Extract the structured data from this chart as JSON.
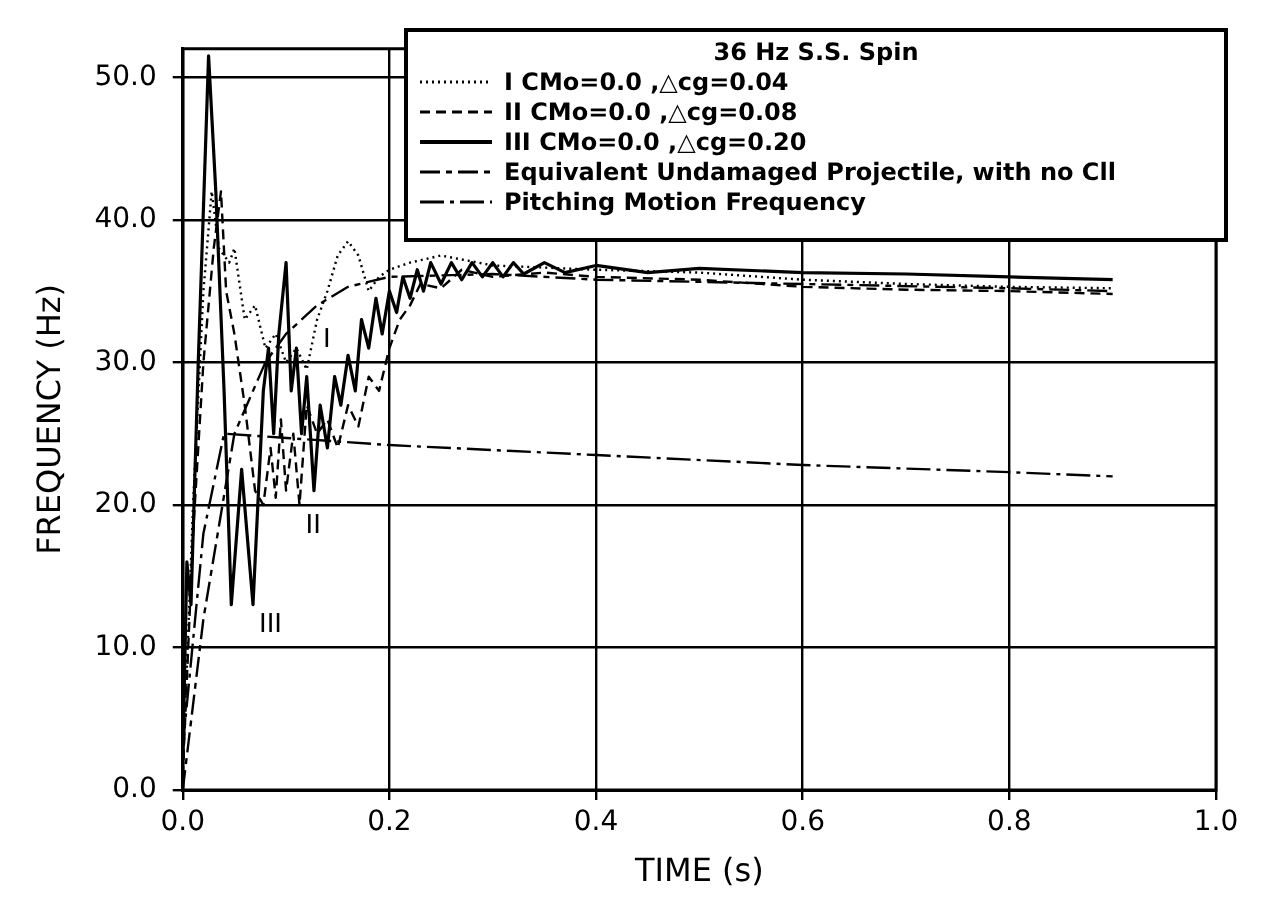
{
  "chart_data": {
    "type": "line",
    "xlabel": "TIME (s)",
    "ylabel": "FREQUENCY (Hz)",
    "legend_title": "36 Hz S.S. Spin",
    "xlim": [
      0,
      1
    ],
    "ylim": [
      0,
      52
    ],
    "xticks": [
      {
        "value": 0,
        "label": "0.0"
      },
      {
        "value": 0.2,
        "label": "0.2"
      },
      {
        "value": 0.4,
        "label": "0.4"
      },
      {
        "value": 0.6,
        "label": "0.6"
      },
      {
        "value": 0.8,
        "label": "0.8"
      },
      {
        "value": 1,
        "label": "1.0"
      }
    ],
    "yticks": [
      {
        "value": 0,
        "label": "0.0"
      },
      {
        "value": 10,
        "label": "10.0"
      },
      {
        "value": 20,
        "label": "20.0"
      },
      {
        "value": 30,
        "label": "30.0"
      },
      {
        "value": 40,
        "label": "40.0"
      },
      {
        "value": 50,
        "label": "50.0"
      }
    ],
    "grid": true,
    "legend": "top right",
    "marker": "none",
    "annotations": [
      {
        "text": "I",
        "x": 0.13,
        "y": 33
      },
      {
        "text": "II",
        "x": 0.113,
        "y": 20
      },
      {
        "text": "III",
        "x": 0.068,
        "y": 13
      }
    ],
    "series": [
      {
        "name": "I CMo=0.0 ,△cg=0.04",
        "color": "#000000",
        "line_style": "dotted",
        "x": [
          0,
          0.01,
          0.02,
          0.028,
          0.035,
          0.045,
          0.05,
          0.06,
          0.07,
          0.08,
          0.09,
          0.1,
          0.11,
          0.12,
          0.13,
          0.14,
          0.15,
          0.16,
          0.17,
          0.18,
          0.19,
          0.2,
          0.22,
          0.25,
          0.3,
          0.4,
          0.5,
          0.6,
          0.7,
          0.8,
          0.9
        ],
        "values": [
          1,
          20,
          35,
          42,
          38,
          37,
          38,
          33,
          34,
          31,
          32,
          30,
          31,
          29.5,
          33,
          35,
          37.5,
          38.5,
          37.5,
          35,
          36,
          36.5,
          37,
          37.5,
          36.8,
          36.5,
          36.3,
          35.8,
          35.5,
          35.3,
          35.2
        ]
      },
      {
        "name": "II CMo=0.0 ,△cg=0.08",
        "color": "#000000",
        "line_style": "dashed",
        "x": [
          0,
          0.01,
          0.02,
          0.03,
          0.037,
          0.042,
          0.05,
          0.06,
          0.07,
          0.078,
          0.085,
          0.09,
          0.095,
          0.1,
          0.107,
          0.113,
          0.12,
          0.13,
          0.14,
          0.15,
          0.16,
          0.17,
          0.18,
          0.19,
          0.2,
          0.21,
          0.22,
          0.23,
          0.25,
          0.27,
          0.3,
          0.35,
          0.4,
          0.5,
          0.6,
          0.7,
          0.8,
          0.9
        ],
        "values": [
          1,
          18,
          30,
          38,
          42,
          35,
          32,
          27,
          21,
          20,
          24,
          20.5,
          26,
          21,
          25,
          20,
          27,
          25,
          26,
          24,
          27,
          25.5,
          29,
          28,
          31,
          33,
          34,
          35.5,
          35.2,
          36.5,
          36,
          36.3,
          36,
          35.8,
          35.3,
          35.1,
          35,
          34.8
        ]
      },
      {
        "name": "III CMo=0.0 ,△cg=0.20",
        "color": "#000000",
        "line_style": "solid",
        "x": [
          0,
          0.004,
          0.008,
          0.015,
          0.025,
          0.032,
          0.04,
          0.047,
          0.057,
          0.068,
          0.078,
          0.083,
          0.088,
          0.093,
          0.1,
          0.105,
          0.11,
          0.115,
          0.12,
          0.127,
          0.133,
          0.14,
          0.147,
          0.153,
          0.16,
          0.167,
          0.173,
          0.18,
          0.187,
          0.193,
          0.2,
          0.207,
          0.213,
          0.22,
          0.227,
          0.233,
          0.24,
          0.25,
          0.26,
          0.27,
          0.28,
          0.29,
          0.3,
          0.31,
          0.32,
          0.33,
          0.35,
          0.37,
          0.4,
          0.45,
          0.5,
          0.6,
          0.7,
          0.8,
          0.9
        ],
        "values": [
          2,
          16,
          13,
          30,
          51.5,
          42,
          28,
          13,
          22.5,
          13,
          28,
          31,
          25,
          32,
          37,
          28,
          31,
          25,
          29,
          21,
          27,
          24,
          29,
          27,
          30.5,
          28,
          33,
          31,
          34.5,
          32,
          35,
          33.5,
          36,
          34.5,
          36.5,
          35,
          37,
          35.5,
          37,
          35.8,
          37,
          36,
          37,
          36,
          37,
          36.2,
          37,
          36.3,
          36.8,
          36.3,
          36.6,
          36.3,
          36.2,
          36,
          35.8
        ]
      },
      {
        "name": "Equivalent Undamaged Projectile, with no Cll",
        "color": "#000000",
        "line_style": "longdash",
        "x": [
          0,
          0.02,
          0.05,
          0.08,
          0.1,
          0.13,
          0.16,
          0.2,
          0.3,
          0.4,
          0.6,
          0.8,
          0.9
        ],
        "values": [
          0,
          12,
          25,
          30,
          32,
          34,
          35.3,
          36,
          36.2,
          35.8,
          35.5,
          35.2,
          35
        ]
      },
      {
        "name": "Pitching Motion Frequency",
        "color": "#000000",
        "line_style": "dashdot",
        "x": [
          0,
          0.02,
          0.04,
          0.1,
          0.2,
          0.4,
          0.6,
          0.8,
          0.9
        ],
        "values": [
          3,
          18,
          25,
          24.7,
          24.2,
          23.5,
          22.8,
          22.3,
          22
        ]
      }
    ]
  }
}
